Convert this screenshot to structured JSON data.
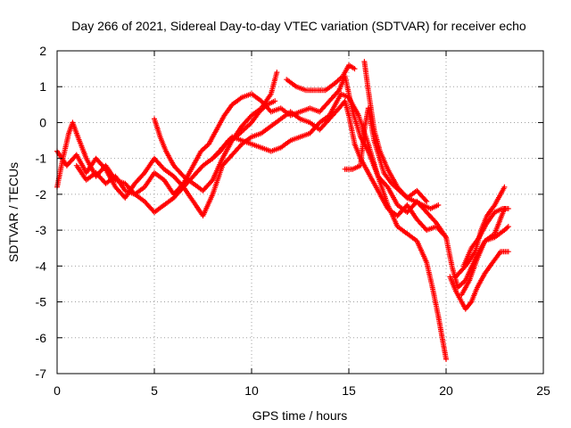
{
  "chart_data": {
    "type": "scatter",
    "title": "Day 266 of 2021, Sidereal Day-to-day VTEC variation (SDTVAR) for receiver echo",
    "xlabel": "GPS time / hours",
    "ylabel": "SDTVAR / TECUs",
    "xlim": [
      0,
      25
    ],
    "ylim": [
      -7,
      2
    ],
    "xticks": [
      0,
      5,
      10,
      15,
      20,
      25
    ],
    "yticks": [
      -7,
      -6,
      -5,
      -4,
      -3,
      -2,
      -1,
      0,
      1,
      2
    ],
    "grid": true,
    "marker": "+",
    "color": "#ff0000",
    "series": [
      {
        "x": [
          0.0,
          0.3,
          0.6,
          0.8,
          1.0,
          1.5,
          2.0,
          2.5,
          3.0,
          3.5,
          4.0,
          4.5,
          5.0,
          5.5,
          6.0,
          6.5,
          7.0,
          7.4,
          7.8,
          8.2,
          8.6,
          9.0,
          9.5,
          10.0,
          10.5,
          11.0,
          11.5,
          12.0,
          12.5,
          13.0,
          13.5,
          14.0,
          14.5,
          14.8,
          15.2,
          15.6,
          16.0,
          16.5,
          17.0,
          17.5,
          18.0,
          18.5,
          19.0,
          19.5,
          20.0
        ],
        "y": [
          -1.8,
          -1.0,
          -0.3,
          0.0,
          -0.3,
          -1.0,
          -1.5,
          -1.2,
          -1.6,
          -1.7,
          -2.0,
          -1.8,
          -1.4,
          -1.6,
          -2.0,
          -1.7,
          -1.2,
          -0.8,
          -0.6,
          -0.2,
          0.2,
          0.5,
          0.7,
          0.8,
          0.6,
          0.3,
          0.4,
          0.2,
          0.3,
          0.4,
          0.3,
          0.6,
          0.9,
          1.3,
          0.3,
          -0.4,
          -0.8,
          -1.5,
          -1.8,
          -2.3,
          -2.5,
          -2.2,
          -2.5,
          -2.8,
          -3.2
        ]
      },
      {
        "x": [
          0.0,
          0.5,
          1.0,
          1.5,
          2.0,
          2.5,
          3.0,
          3.5,
          4.0,
          4.5,
          5.0,
          5.5,
          6.0,
          6.5,
          7.0,
          7.5,
          8.0,
          8.5,
          9.0,
          9.5,
          10.0,
          10.5,
          11.0,
          11.5,
          12.0,
          12.5,
          13.0,
          13.5,
          14.0,
          14.5,
          14.8,
          15.0,
          15.3,
          15.6,
          16.0,
          16.5,
          17.0,
          17.5,
          18.0,
          18.5,
          19.0,
          19.5,
          20.0,
          20.3,
          20.6,
          21.0,
          21.5,
          22.0,
          22.5,
          23.0
        ],
        "y": [
          -0.8,
          -1.2,
          -0.9,
          -1.4,
          -1.0,
          -1.3,
          -1.8,
          -2.1,
          -1.7,
          -1.4,
          -1.0,
          -1.3,
          -1.5,
          -1.8,
          -2.2,
          -2.6,
          -2.0,
          -1.2,
          -0.9,
          -0.6,
          -0.4,
          -0.3,
          -0.1,
          0.1,
          0.3,
          0.1,
          0.0,
          -0.2,
          0.1,
          0.4,
          0.6,
          0.2,
          -0.6,
          -1.0,
          -1.4,
          -1.9,
          -2.4,
          -2.6,
          -2.3,
          -2.7,
          -3.0,
          -2.9,
          -3.2,
          -4.0,
          -4.6,
          -4.4,
          -3.8,
          -3.3,
          -3.1,
          -2.4
        ]
      },
      {
        "x": [
          1.0,
          1.5,
          2.0,
          2.5,
          3.0,
          3.5,
          4.0,
          4.5,
          5.0,
          5.5,
          6.0,
          6.5,
          7.0,
          7.5,
          8.0,
          8.5,
          9.0,
          9.5,
          10.0,
          10.5,
          11.0,
          11.5,
          12.0,
          12.5,
          13.0,
          13.5,
          14.0,
          14.3,
          14.6,
          15.0,
          15.5,
          16.0,
          16.5,
          17.0,
          17.5,
          18.0,
          18.5,
          19.0,
          19.3,
          19.6,
          19.8,
          20.0
        ],
        "y": [
          -1.2,
          -1.6,
          -1.4,
          -1.7,
          -1.5,
          -1.9,
          -2.0,
          -2.2,
          -2.5,
          -2.3,
          -2.1,
          -1.8,
          -1.5,
          -1.2,
          -1.0,
          -0.7,
          -0.4,
          -0.5,
          -0.6,
          -0.7,
          -0.8,
          -0.7,
          -0.5,
          -0.4,
          -0.3,
          0.0,
          0.2,
          0.5,
          0.8,
          0.7,
          0.2,
          -0.6,
          -1.5,
          -2.3,
          -2.9,
          -3.1,
          -3.3,
          -3.9,
          -4.6,
          -5.4,
          -6.0,
          -6.6
        ]
      },
      {
        "x": [
          5.0,
          5.3,
          5.6,
          6.0,
          6.5,
          7.0,
          7.5,
          8.0,
          8.5,
          9.0,
          9.5,
          10.0,
          10.5,
          11.0,
          11.3
        ],
        "y": [
          0.1,
          -0.4,
          -0.8,
          -1.2,
          -1.5,
          -1.7,
          -1.9,
          -1.6,
          -1.0,
          -0.5,
          -0.1,
          0.2,
          0.4,
          0.8,
          1.4
        ]
      },
      {
        "x": [
          11.8,
          12.3,
          12.8,
          13.3,
          13.8,
          14.3,
          14.7,
          15.0,
          15.3
        ],
        "y": [
          1.2,
          1.0,
          0.9,
          0.9,
          0.9,
          1.1,
          1.3,
          1.6,
          1.5
        ]
      },
      {
        "x": [
          14.8,
          15.2,
          15.6,
          15.8,
          16.0,
          16.3,
          16.8,
          17.2,
          17.6,
          18.0,
          18.4,
          18.8,
          19.2,
          19.6
        ],
        "y": [
          -1.3,
          -1.3,
          -1.2,
          -0.2,
          0.4,
          -0.5,
          -1.4,
          -1.7,
          -1.9,
          -2.1,
          -2.2,
          -2.3,
          -2.4,
          -2.3
        ]
      },
      {
        "x": [
          15.8,
          16.0,
          16.3,
          16.6,
          17.0,
          17.5,
          18.0,
          18.5,
          19.0
        ],
        "y": [
          1.7,
          0.9,
          -0.2,
          -0.8,
          -1.3,
          -1.8,
          -2.1,
          -1.9,
          -2.2
        ]
      },
      {
        "x": [
          20.2,
          20.5,
          20.8,
          21.0,
          21.3,
          21.6,
          22.0,
          22.4,
          22.8,
          23.2
        ],
        "y": [
          -4.3,
          -4.7,
          -5.0,
          -5.2,
          -5.0,
          -4.6,
          -4.2,
          -3.9,
          -3.6,
          -3.6
        ]
      },
      {
        "x": [
          20.5,
          21.0,
          21.5,
          21.8,
          22.1,
          22.5,
          23.0
        ],
        "y": [
          -4.3,
          -4.0,
          -3.6,
          -3.0,
          -2.6,
          -2.3,
          -1.8
        ]
      },
      {
        "x": [
          20.8,
          21.2,
          21.6,
          22.0,
          22.5,
          23.0,
          23.2
        ],
        "y": [
          -4.8,
          -4.4,
          -3.8,
          -3.3,
          -3.2,
          -3.0,
          -2.9
        ]
      },
      {
        "x": [
          20.9,
          21.3,
          21.7,
          22.1,
          22.5,
          22.9,
          23.2
        ],
        "y": [
          -4.0,
          -3.5,
          -3.2,
          -2.8,
          -2.5,
          -2.4,
          -2.4
        ]
      },
      {
        "x": [
          8.0,
          8.4,
          8.8,
          9.2,
          9.6,
          10.0,
          10.4,
          10.8,
          11.2
        ],
        "y": [
          -1.0,
          -0.8,
          -0.5,
          -0.4,
          -0.2,
          0.0,
          0.3,
          0.5,
          0.6
        ]
      }
    ]
  }
}
